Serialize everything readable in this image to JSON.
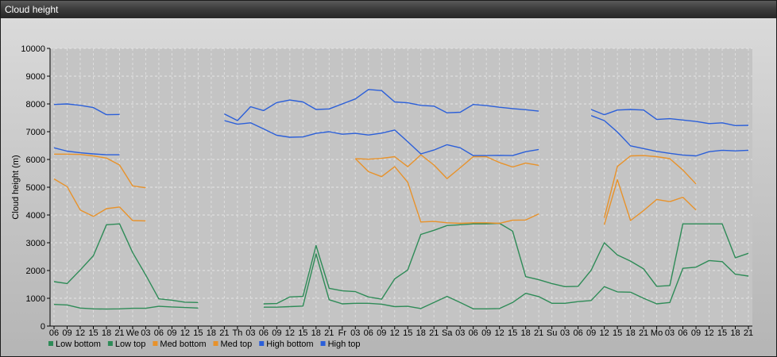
{
  "window": {
    "title": "Cloud height"
  },
  "chart_data": {
    "type": "line",
    "ylabel": "Cloud height (m)",
    "ylim": [
      0,
      10000
    ],
    "yticks": [
      0,
      1000,
      2000,
      3000,
      4000,
      5000,
      6000,
      7000,
      8000,
      9000,
      10000
    ],
    "grid": true,
    "legend_position": "bottom-left",
    "x_labels": [
      "06",
      "09",
      "12",
      "15",
      "18",
      "21",
      "We",
      "03",
      "06",
      "09",
      "12",
      "15",
      "18",
      "21",
      "Th",
      "03",
      "06",
      "09",
      "12",
      "15",
      "18",
      "21",
      "Fr",
      "03",
      "06",
      "09",
      "12",
      "15",
      "18",
      "21",
      "Sa",
      "03",
      "06",
      "09",
      "12",
      "15",
      "18",
      "21",
      "Su",
      "03",
      "06",
      "09",
      "12",
      "15",
      "18",
      "21",
      "Mo",
      "03",
      "06",
      "09",
      "12",
      "15",
      "18",
      "21"
    ],
    "series": [
      {
        "name": "Low bottom",
        "color": "#2e8b57",
        "values": [
          780,
          760,
          650,
          620,
          610,
          620,
          640,
          640,
          710,
          690,
          670,
          650,
          null,
          null,
          null,
          null,
          680,
          680,
          700,
          720,
          2600,
          950,
          800,
          820,
          820,
          790,
          700,
          710,
          630,
          850,
          1070,
          850,
          620,
          620,
          630,
          850,
          1180,
          1060,
          820,
          820,
          880,
          920,
          1420,
          1230,
          1220,
          1000,
          800,
          850,
          2080,
          2120,
          2360,
          2320,
          1870,
          1800
        ]
      },
      {
        "name": "Low top",
        "color": "#2e8b57",
        "values": [
          1600,
          1530,
          2020,
          2530,
          3650,
          3680,
          2650,
          1840,
          980,
          930,
          860,
          850,
          null,
          null,
          null,
          null,
          800,
          810,
          1050,
          1070,
          2900,
          1360,
          1270,
          1240,
          1050,
          970,
          1700,
          2020,
          3300,
          3450,
          3620,
          3650,
          3680,
          3680,
          3700,
          3420,
          1780,
          1670,
          1530,
          1420,
          1430,
          2010,
          3000,
          2560,
          2340,
          2060,
          1430,
          1460,
          3680,
          3680,
          3680,
          3680,
          2460,
          2620
        ]
      },
      {
        "name": "Med bottom",
        "color": "#e8922a",
        "values": [
          5300,
          5020,
          4180,
          3950,
          4230,
          4290,
          3800,
          3790,
          null,
          null,
          null,
          null,
          null,
          null,
          null,
          null,
          null,
          null,
          null,
          null,
          null,
          null,
          null,
          6030,
          5560,
          5380,
          5740,
          5180,
          3750,
          3770,
          3720,
          3700,
          3720,
          3720,
          3700,
          3810,
          3820,
          4040,
          null,
          null,
          null,
          null,
          3650,
          5270,
          3800,
          4160,
          4560,
          4480,
          4640,
          4180,
          null,
          null,
          null,
          null
        ]
      },
      {
        "name": "Med top",
        "color": "#e8922a",
        "values": [
          6190,
          6190,
          6180,
          6130,
          6050,
          5800,
          5050,
          4980,
          null,
          null,
          null,
          null,
          null,
          null,
          null,
          null,
          null,
          null,
          null,
          null,
          null,
          null,
          null,
          6030,
          6010,
          6040,
          6100,
          5740,
          6170,
          5800,
          5310,
          5700,
          6100,
          6100,
          5890,
          5730,
          5870,
          5790,
          null,
          null,
          null,
          null,
          3900,
          5750,
          6130,
          6140,
          6100,
          6030,
          5620,
          5120,
          null,
          null,
          null,
          null
        ]
      },
      {
        "name": "High bottom",
        "color": "#2b5fd9",
        "values": [
          6420,
          6300,
          6240,
          6200,
          6170,
          6170,
          null,
          null,
          null,
          null,
          null,
          null,
          null,
          7400,
          7270,
          7320,
          7100,
          6870,
          6800,
          6810,
          6940,
          7000,
          6910,
          6940,
          6880,
          6950,
          7060,
          6640,
          6200,
          6340,
          6530,
          6420,
          6140,
          6140,
          6150,
          6140,
          6280,
          6360,
          null,
          null,
          null,
          7580,
          7400,
          6990,
          6490,
          6390,
          6290,
          6220,
          6160,
          6130,
          6280,
          6330,
          6310,
          6330
        ]
      },
      {
        "name": "High top",
        "color": "#2b5fd9",
        "values": [
          7980,
          8000,
          7950,
          7870,
          7610,
          7620,
          null,
          null,
          null,
          null,
          null,
          null,
          null,
          7640,
          7400,
          7900,
          7760,
          8050,
          8140,
          8070,
          7800,
          7820,
          8000,
          8180,
          8520,
          8480,
          8070,
          8040,
          7950,
          7920,
          7680,
          7700,
          7980,
          7940,
          7880,
          7830,
          7790,
          7740,
          null,
          null,
          null,
          7800,
          7610,
          7780,
          7800,
          7780,
          7440,
          7470,
          7420,
          7370,
          7290,
          7320,
          7220,
          7230
        ]
      }
    ]
  }
}
